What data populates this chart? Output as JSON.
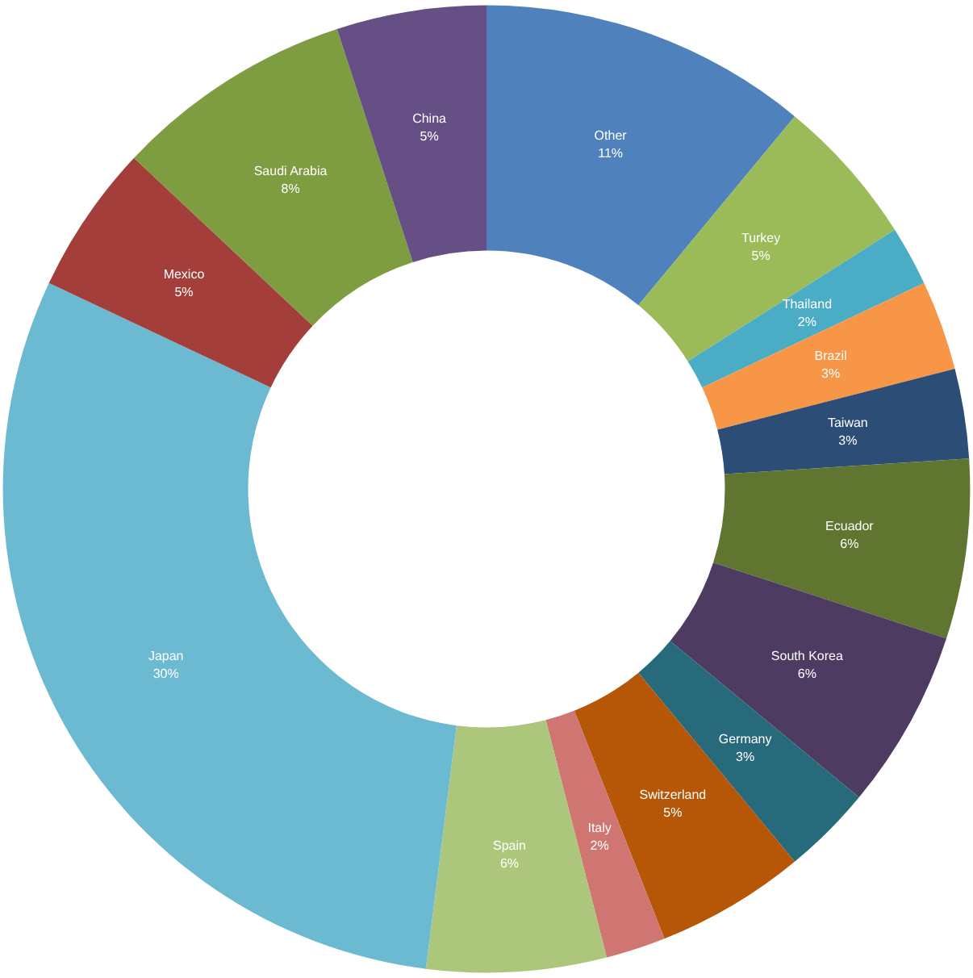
{
  "chart_data": {
    "type": "donut",
    "categories": [
      "Other",
      "Turkey",
      "Thailand",
      "Brazil",
      "Taiwan",
      "Ecuador",
      "South Korea",
      "Germany",
      "Switzerland",
      "Italy",
      "Spain",
      "Japan",
      "Mexico",
      "Saudi Arabia",
      "China"
    ],
    "values": [
      11,
      5,
      2,
      3,
      3,
      6,
      6,
      3,
      5,
      2,
      6,
      30,
      5,
      8,
      5
    ],
    "value_labels": [
      "11%",
      "5%",
      "2%",
      "3%",
      "3%",
      "6%",
      "6%",
      "3%",
      "5%",
      "2%",
      "6%",
      "30%",
      "5%",
      "8%",
      "5%"
    ],
    "colors": [
      "#4f81bd",
      "#9bbb59",
      "#4bacc6",
      "#f79646",
      "#2c4d75",
      "#5f7530",
      "#4d3b62",
      "#276a7c",
      "#b65708",
      "#d07672",
      "#acc77b",
      "#6bbad1",
      "#a33e3b",
      "#7e9c40",
      "#654f84"
    ]
  }
}
